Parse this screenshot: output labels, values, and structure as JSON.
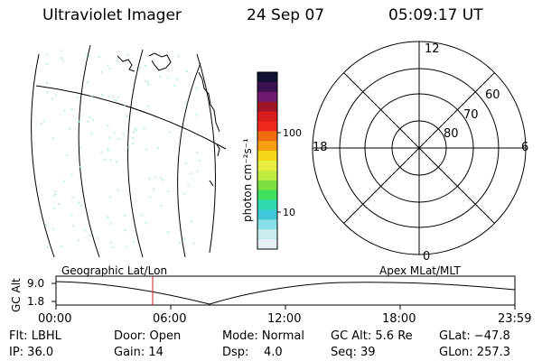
{
  "header": {
    "instrument": "Ultraviolet Imager",
    "date": "24 Sep 07",
    "time": "05:09:17 UT"
  },
  "colorbar": {
    "unit_label": "photon cm⁻²s⁻¹",
    "tick_labels": [
      "100",
      "10"
    ],
    "colors": [
      "#111133",
      "#3a1150",
      "#6e1a70",
      "#a01428",
      "#d81c1c",
      "#ee2a1c",
      "#f06a10",
      "#f5a010",
      "#f5d81a",
      "#e8ee40",
      "#c0ec40",
      "#7ee040",
      "#3ee060",
      "#30d8b0",
      "#40c8d8",
      "#8ae0e8",
      "#c8ecee",
      "#e6f0f2"
    ]
  },
  "polar_plot": {
    "mlt_labels": {
      "top": "12",
      "bottom": "0",
      "left": "18",
      "right": "6"
    },
    "lat_labels": [
      "60",
      "70",
      "80"
    ]
  },
  "timeline": {
    "ylabel": "GC Alt",
    "ymax_label": "9.0",
    "ymin_label": "1.8",
    "left_caption": "Geographic Lat/Lon",
    "right_caption": "Apex MLat/MLT",
    "time_ticks": [
      "00:00",
      "06:00",
      "12:00",
      "18:00",
      "23:59"
    ]
  },
  "status": {
    "flt": "Flt: LBHL",
    "ip": "IP: 36.0",
    "door": "Door: Open",
    "gain": "Gain: 14",
    "mode": "Mode: Normal",
    "dsp": "Dsp:    4.0",
    "gc_alt": "GC Alt: 5.6 Re",
    "seq": "Seq: 39",
    "glat": "GLat: −47.8",
    "glon": "GLon: 257.3"
  }
}
